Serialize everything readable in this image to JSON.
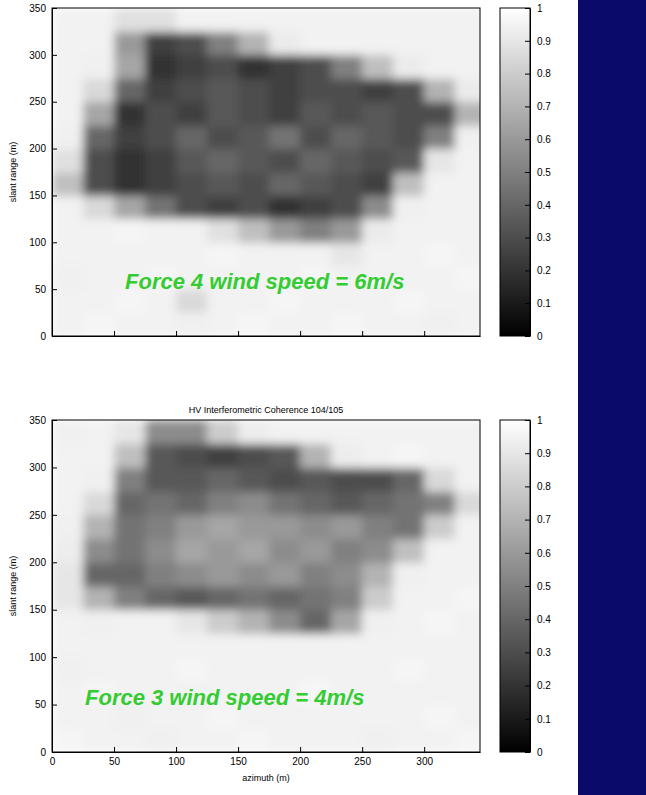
{
  "chart_data": [
    {
      "type": "heatmap",
      "color": "gray",
      "tick_labels": "y",
      "ylabel": "slant range (m)",
      "annotation": "Force 4 wind speed = 6m/s",
      "xlim": [
        0,
        345
      ],
      "ylim": [
        0,
        350
      ],
      "xticks": [
        0,
        50,
        100,
        150,
        200,
        250,
        300
      ],
      "yticks": [
        0,
        50,
        100,
        150,
        200,
        250,
        300,
        350
      ],
      "x": [
        12.5,
        37.5,
        62.5,
        87.5,
        112.5,
        137.5,
        162.5,
        187.5,
        212.5,
        237.5,
        262.5,
        287.5,
        312.5,
        337.5
      ],
      "y": [
        12.5,
        37.5,
        62.5,
        87.5,
        112.5,
        137.5,
        162.5,
        187.5,
        212.5,
        237.5,
        262.5,
        287.5,
        312.5,
        337.5
      ],
      "cells": [
        [
          0.95,
          0.96,
          0.95,
          0.95,
          0.94,
          0.95,
          0.96,
          0.95,
          0.95,
          0.96,
          0.95,
          0.95,
          0.94,
          0.95
        ],
        [
          0.95,
          0.95,
          0.96,
          0.95,
          0.85,
          0.95,
          0.95,
          0.96,
          0.95,
          0.95,
          0.95,
          0.96,
          0.95,
          0.95
        ],
        [
          0.94,
          0.95,
          0.95,
          0.96,
          0.95,
          0.95,
          0.95,
          0.95,
          0.96,
          0.95,
          0.95,
          0.95,
          0.95,
          0.96
        ],
        [
          0.95,
          0.95,
          0.95,
          0.95,
          0.95,
          0.96,
          0.95,
          0.95,
          0.95,
          0.9,
          0.95,
          0.95,
          0.96,
          0.95
        ],
        [
          0.95,
          0.95,
          0.96,
          0.95,
          0.95,
          0.88,
          0.75,
          0.6,
          0.5,
          0.6,
          0.92,
          0.95,
          0.95,
          0.95
        ],
        [
          0.95,
          0.85,
          0.65,
          0.45,
          0.3,
          0.25,
          0.3,
          0.2,
          0.25,
          0.3,
          0.55,
          0.94,
          0.95,
          0.95
        ],
        [
          0.75,
          0.3,
          0.2,
          0.25,
          0.3,
          0.35,
          0.3,
          0.4,
          0.35,
          0.3,
          0.25,
          0.75,
          0.95,
          0.95
        ],
        [
          0.88,
          0.3,
          0.2,
          0.25,
          0.35,
          0.4,
          0.35,
          0.3,
          0.4,
          0.35,
          0.3,
          0.35,
          0.9,
          0.95
        ],
        [
          0.94,
          0.4,
          0.25,
          0.3,
          0.4,
          0.3,
          0.35,
          0.45,
          0.3,
          0.4,
          0.35,
          0.3,
          0.5,
          0.94
        ],
        [
          0.95,
          0.65,
          0.2,
          0.3,
          0.25,
          0.35,
          0.3,
          0.25,
          0.35,
          0.3,
          0.35,
          0.3,
          0.3,
          0.7
        ],
        [
          0.95,
          0.85,
          0.4,
          0.25,
          0.3,
          0.35,
          0.3,
          0.25,
          0.3,
          0.3,
          0.25,
          0.3,
          0.7,
          0.92
        ],
        [
          0.95,
          0.94,
          0.65,
          0.2,
          0.25,
          0.3,
          0.2,
          0.25,
          0.3,
          0.5,
          0.75,
          0.92,
          0.95,
          0.95
        ],
        [
          0.95,
          0.95,
          0.6,
          0.25,
          0.3,
          0.5,
          0.7,
          0.92,
          0.95,
          0.95,
          0.95,
          0.95,
          0.95,
          0.95
        ],
        [
          0.95,
          0.95,
          0.88,
          0.88,
          0.95,
          0.95,
          0.95,
          0.95,
          0.95,
          0.95,
          0.95,
          0.95,
          0.95,
          0.95
        ]
      ],
      "colorbar": {
        "range": [
          0,
          1
        ],
        "ticks": [
          0,
          0.1,
          0.2,
          0.3,
          0.4,
          0.5,
          0.6,
          0.7,
          0.8,
          0.9,
          1
        ]
      }
    },
    {
      "type": "heatmap",
      "color": "gray",
      "title": "HV Interferometric Coherence 104/105",
      "xlabel": "azimuth (m)",
      "ylabel": "slant range (m)",
      "annotation": "Force 3 wind speed = 4m/s",
      "xlim": [
        0,
        345
      ],
      "ylim": [
        0,
        350
      ],
      "xticks": [
        0,
        50,
        100,
        150,
        200,
        250,
        300
      ],
      "yticks": [
        0,
        50,
        100,
        150,
        200,
        250,
        300,
        350
      ],
      "x": [
        12.5,
        37.5,
        62.5,
        87.5,
        112.5,
        137.5,
        162.5,
        187.5,
        212.5,
        237.5,
        262.5,
        287.5,
        312.5,
        337.5
      ],
      "y": [
        12.5,
        37.5,
        62.5,
        87.5,
        112.5,
        137.5,
        162.5,
        187.5,
        212.5,
        237.5,
        262.5,
        287.5,
        312.5,
        337.5
      ],
      "cells": [
        [
          0.96,
          0.95,
          0.95,
          0.94,
          0.95,
          0.95,
          0.96,
          0.95,
          0.95,
          0.95,
          0.94,
          0.95,
          0.95,
          0.96
        ],
        [
          0.95,
          0.95,
          0.94,
          0.95,
          0.95,
          0.96,
          0.95,
          0.95,
          0.95,
          0.95,
          0.95,
          0.95,
          0.96,
          0.95
        ],
        [
          0.95,
          0.96,
          0.95,
          0.95,
          0.95,
          0.95,
          0.95,
          0.95,
          0.97,
          0.95,
          0.95,
          0.95,
          0.95,
          0.95
        ],
        [
          0.94,
          0.95,
          0.95,
          0.95,
          0.96,
          0.95,
          0.95,
          0.95,
          0.95,
          0.95,
          0.95,
          0.96,
          0.95,
          0.95
        ],
        [
          0.95,
          0.95,
          0.95,
          0.95,
          0.95,
          0.95,
          0.95,
          0.95,
          0.95,
          0.95,
          0.95,
          0.95,
          0.95,
          0.95
        ],
        [
          0.95,
          0.94,
          0.95,
          0.95,
          0.9,
          0.8,
          0.7,
          0.55,
          0.4,
          0.65,
          0.94,
          0.95,
          0.96,
          0.95
        ],
        [
          0.9,
          0.7,
          0.5,
          0.4,
          0.35,
          0.4,
          0.45,
          0.4,
          0.45,
          0.5,
          0.8,
          0.95,
          0.95,
          0.96
        ],
        [
          0.9,
          0.4,
          0.4,
          0.5,
          0.55,
          0.6,
          0.55,
          0.6,
          0.5,
          0.55,
          0.7,
          0.94,
          0.95,
          0.95
        ],
        [
          0.93,
          0.55,
          0.45,
          0.55,
          0.65,
          0.6,
          0.65,
          0.55,
          0.6,
          0.5,
          0.55,
          0.75,
          0.95,
          0.95
        ],
        [
          0.94,
          0.7,
          0.45,
          0.5,
          0.6,
          0.65,
          0.6,
          0.6,
          0.55,
          0.6,
          0.5,
          0.45,
          0.8,
          0.95
        ],
        [
          0.95,
          0.85,
          0.4,
          0.45,
          0.4,
          0.5,
          0.55,
          0.45,
          0.4,
          0.35,
          0.4,
          0.45,
          0.5,
          0.85
        ],
        [
          0.95,
          0.94,
          0.5,
          0.35,
          0.35,
          0.4,
          0.35,
          0.3,
          0.35,
          0.3,
          0.3,
          0.4,
          0.85,
          0.95
        ],
        [
          0.95,
          0.95,
          0.75,
          0.35,
          0.3,
          0.25,
          0.3,
          0.35,
          0.7,
          0.93,
          0.95,
          0.96,
          0.95,
          0.95
        ],
        [
          0.94,
          0.95,
          0.9,
          0.55,
          0.55,
          0.8,
          0.93,
          0.95,
          0.95,
          0.95,
          0.95,
          0.95,
          0.95,
          0.95
        ]
      ],
      "colorbar": {
        "range": [
          0,
          1
        ],
        "ticks": [
          0,
          0.1,
          0.2,
          0.3,
          0.4,
          0.5,
          0.6,
          0.7,
          0.8,
          0.9,
          1
        ]
      }
    }
  ]
}
